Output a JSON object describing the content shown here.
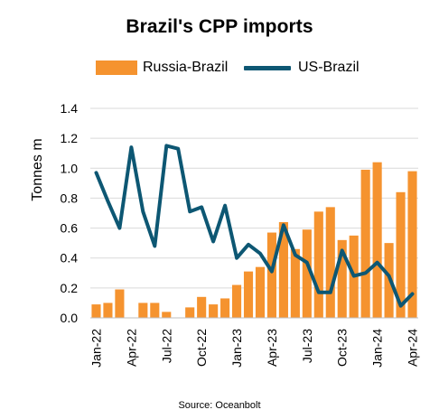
{
  "chart_data": {
    "type": "bar",
    "title": "Brazil's CPP imports",
    "ylabel": "Tonnes m",
    "xlabel": "",
    "source": "Source: Oceanbolt",
    "ylim": [
      0,
      1.4
    ],
    "yticks": [
      "0.0",
      "0.2",
      "0.4",
      "0.6",
      "0.8",
      "1.0",
      "1.2",
      "1.4"
    ],
    "grid": true,
    "legend_position": "top",
    "colors": {
      "bar": "#F5932F",
      "line": "#0D5773"
    },
    "categories": [
      "Jan-22",
      "Feb-22",
      "Mar-22",
      "Apr-22",
      "May-22",
      "Jun-22",
      "Jul-22",
      "Aug-22",
      "Sep-22",
      "Oct-22",
      "Nov-22",
      "Dec-22",
      "Jan-23",
      "Feb-23",
      "Mar-23",
      "Apr-23",
      "May-23",
      "Jun-23",
      "Jul-23",
      "Aug-23",
      "Sep-23",
      "Oct-23",
      "Nov-23",
      "Dec-23",
      "Jan-24",
      "Feb-24",
      "Mar-24",
      "Apr-24"
    ],
    "xtick_labels": [
      "Jan-22",
      "Apr-22",
      "Jul-22",
      "Oct-22",
      "Jan-23",
      "Apr-23",
      "Jul-23",
      "Oct-23",
      "Jan-24",
      "Apr-24"
    ],
    "series": [
      {
        "name": "Russia-Brazil",
        "type": "bar",
        "values": [
          0.09,
          0.1,
          0.19,
          0.0,
          0.1,
          0.1,
          0.04,
          0.0,
          0.07,
          0.14,
          0.09,
          0.13,
          0.22,
          0.31,
          0.34,
          0.57,
          0.64,
          0.46,
          0.59,
          0.71,
          0.74,
          0.52,
          0.55,
          0.99,
          1.04,
          0.5,
          0.84,
          0.98
        ]
      },
      {
        "name": "US-Brazil",
        "type": "line",
        "values": [
          0.97,
          0.78,
          0.6,
          1.14,
          0.71,
          0.48,
          1.15,
          1.13,
          0.71,
          0.74,
          0.51,
          0.75,
          0.4,
          0.49,
          0.43,
          0.31,
          0.62,
          0.42,
          0.37,
          0.17,
          0.17,
          0.45,
          0.28,
          0.3,
          0.37,
          0.28,
          0.08,
          0.16
        ]
      }
    ]
  }
}
